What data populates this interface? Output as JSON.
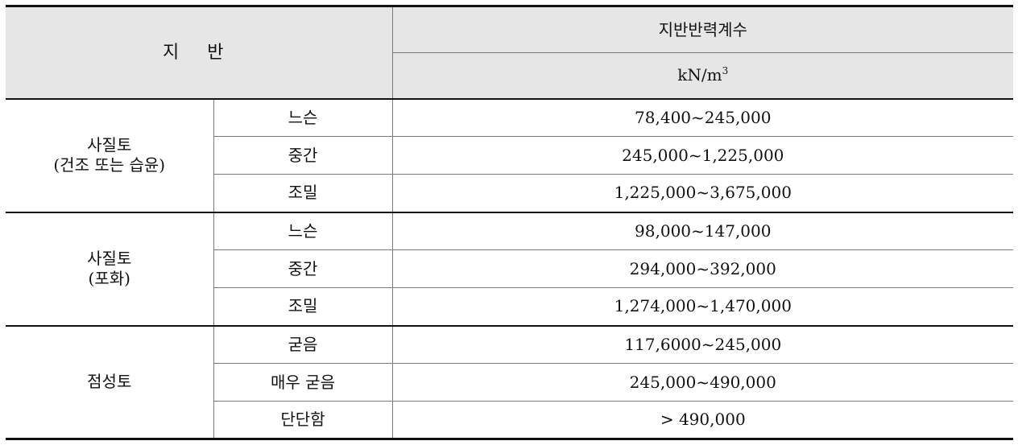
{
  "table": {
    "header": {
      "soil_label": "지 반",
      "coefficient_label": "지반반력계수",
      "unit_base": "kN/m",
      "unit_exp": "3"
    },
    "groups": [
      {
        "name_line1": "사질토",
        "name_line2": "(건조 또는 습윤)",
        "rows": [
          {
            "condition": "느슨",
            "range": "78,400~245,000"
          },
          {
            "condition": "중간",
            "range": "245,000~1,225,000"
          },
          {
            "condition": "조밀",
            "range": "1,225,000~3,675,000"
          }
        ]
      },
      {
        "name_line1": "사질토",
        "name_line2": "(포화)",
        "rows": [
          {
            "condition": "느슨",
            "range": "98,000~147,000"
          },
          {
            "condition": "중간",
            "range": "294,000~392,000"
          },
          {
            "condition": "조밀",
            "range": "1,274,000~1,470,000"
          }
        ]
      },
      {
        "name_line1": "점성토",
        "name_line2": "",
        "rows": [
          {
            "condition": "굳음",
            "range": "117,6000~245,000"
          },
          {
            "condition": "매우 굳음",
            "range": "245,000~490,000"
          },
          {
            "condition": "단단함",
            "range": "> 490,000"
          }
        ]
      }
    ]
  }
}
